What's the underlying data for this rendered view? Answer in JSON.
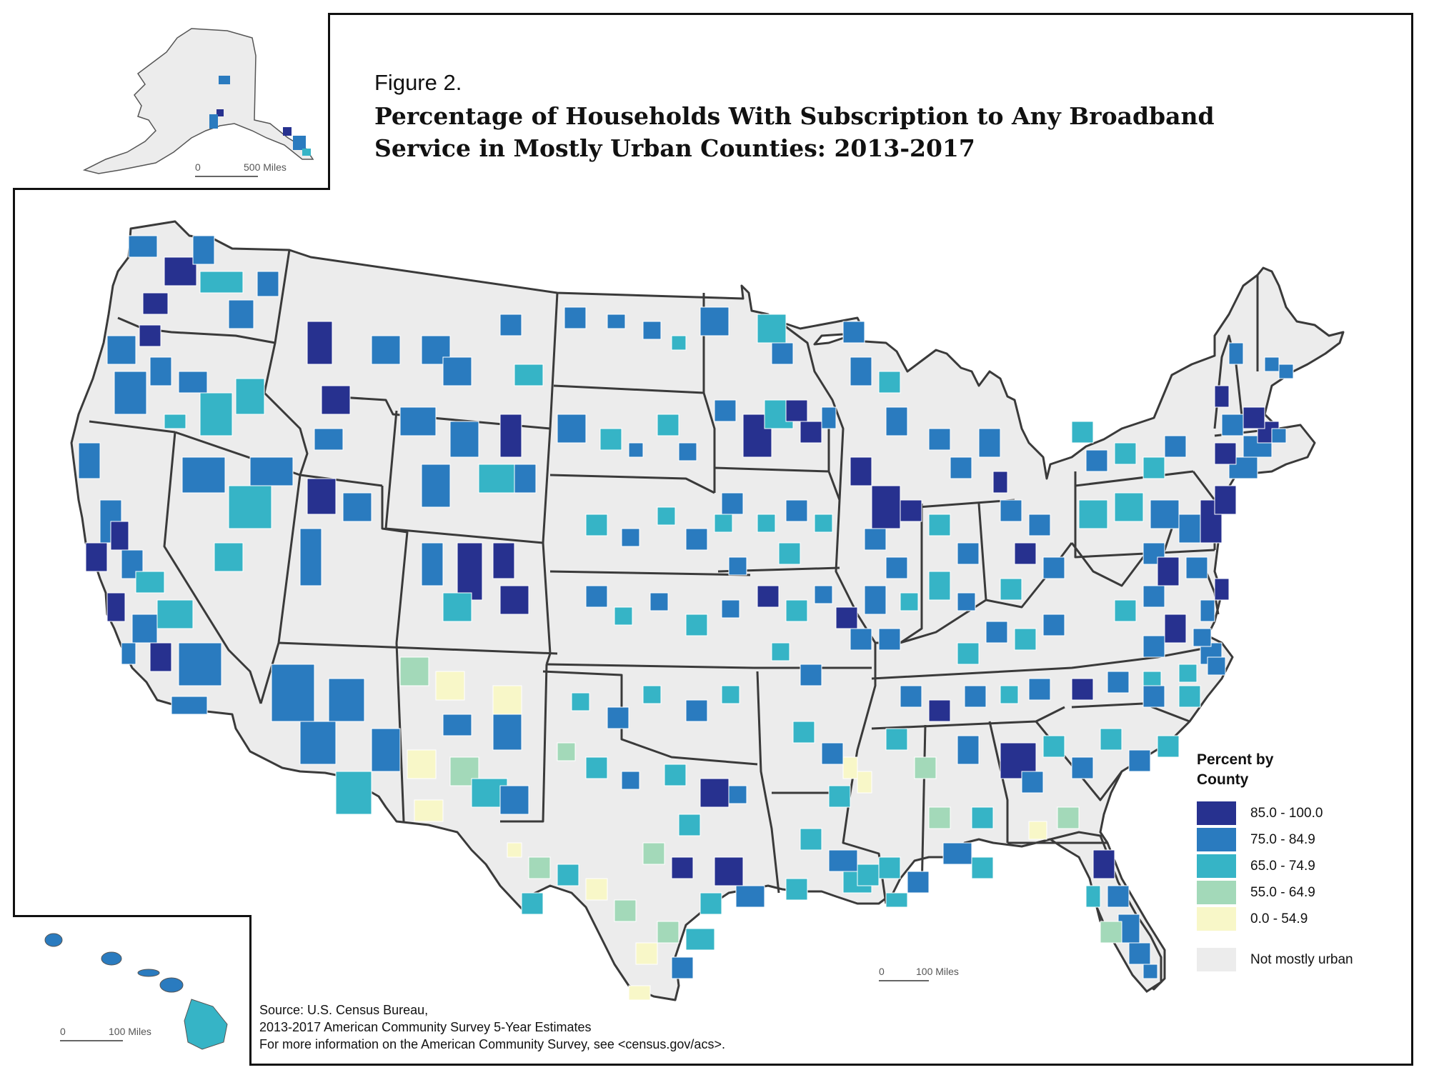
{
  "figure_label": "Figure 2.",
  "title_line1": "Percentage of Households With Subscription to Any Broadband",
  "title_line2": "Service in Mostly Urban Counties: 2013-2017",
  "legend": {
    "title": "Percent by County",
    "classes": [
      {
        "label": "85.0 - 100.0",
        "color": "#27318f"
      },
      {
        "label": "75.0 - 84.9",
        "color": "#2a7bbf"
      },
      {
        "label": "65.0 - 74.9",
        "color": "#36b4c6"
      },
      {
        "label": "55.0 - 64.9",
        "color": "#a3d9b9"
      },
      {
        "label": "0.0 - 54.9",
        "color": "#f8f7c8"
      }
    ],
    "not_urban": {
      "label": "Not mostly urban",
      "color": "#ececec"
    }
  },
  "scales": {
    "alaska": {
      "zero": "0",
      "distance": "500 Miles"
    },
    "main": {
      "zero": "0",
      "distance": "100 Miles"
    },
    "hawaii": {
      "zero": "0",
      "distance": "100 Miles"
    }
  },
  "source": {
    "line1": "Source: U.S. Census Bureau,",
    "line2": "2013-2017 American Community Survey 5-Year Estimates",
    "line3": "For more information on the American Community Survey, see <census.gov/acs>."
  },
  "colors": {
    "state_border": "#3a3a3a",
    "land": "#ececec"
  }
}
